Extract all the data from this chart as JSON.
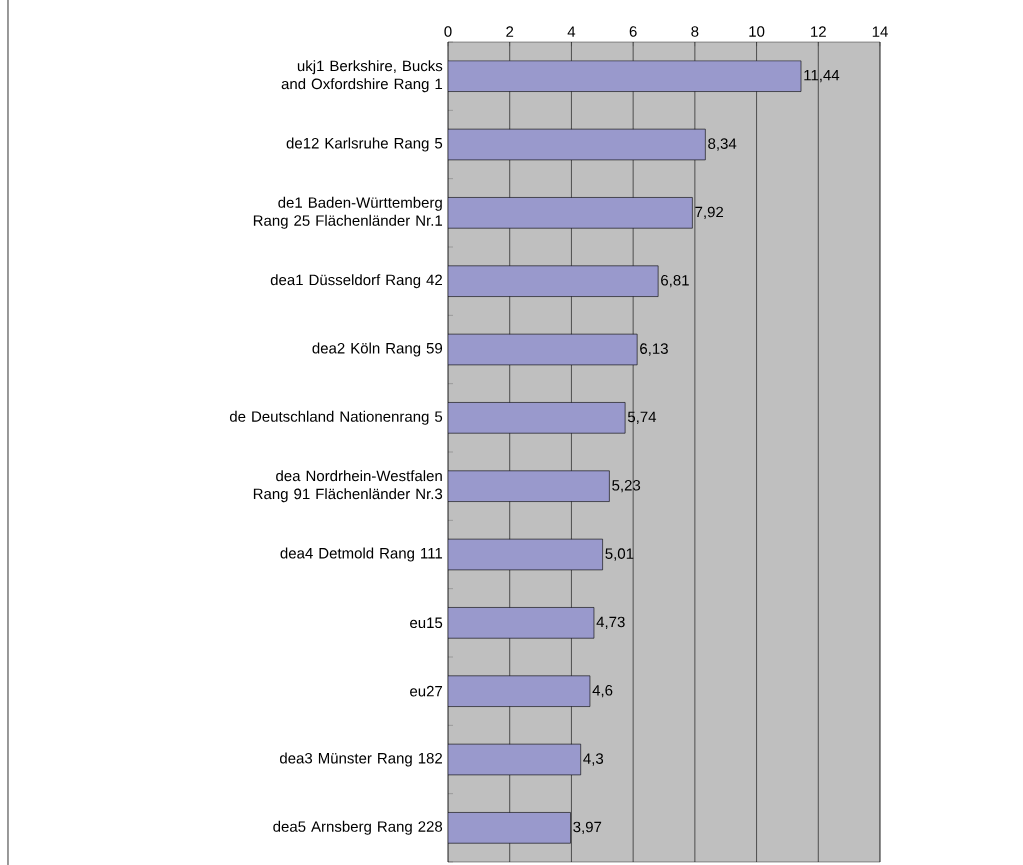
{
  "chart_data": {
    "type": "bar",
    "orientation": "horizontal",
    "categories": [
      "ukj1 Berkshire, Bucks and Oxfordshire Rang 1",
      "de12 Karlsruhe Rang 5",
      "de1 Baden-Württemberg Rang 25 Flächenländer Nr.1",
      "dea1 Düsseldorf Rang 42",
      "dea2 Köln Rang 59",
      "de Deutschland Nationenrang 5",
      "dea Nordrhein-Westfalen Rang 91 Flächenländer Nr.3",
      "dea4 Detmold Rang 111",
      "eu15",
      "eu27",
      "dea3 Münster Rang 182",
      "dea5 Arnsberg Rang 228"
    ],
    "values": [
      11.44,
      8.34,
      7.92,
      6.81,
      6.13,
      5.74,
      5.23,
      5.01,
      4.73,
      4.6,
      4.3,
      3.97
    ],
    "value_labels": [
      "11,44",
      "8,34",
      "7,92",
      "6,81",
      "6,13",
      "5,74",
      "5,23",
      "5,01",
      "4,73",
      "4,6",
      "4,3",
      "3,97"
    ],
    "color": "#9999cc",
    "xlim": [
      0,
      14
    ],
    "xticks": [
      0,
      2,
      4,
      6,
      8,
      10,
      12,
      14
    ],
    "grid": "x"
  }
}
